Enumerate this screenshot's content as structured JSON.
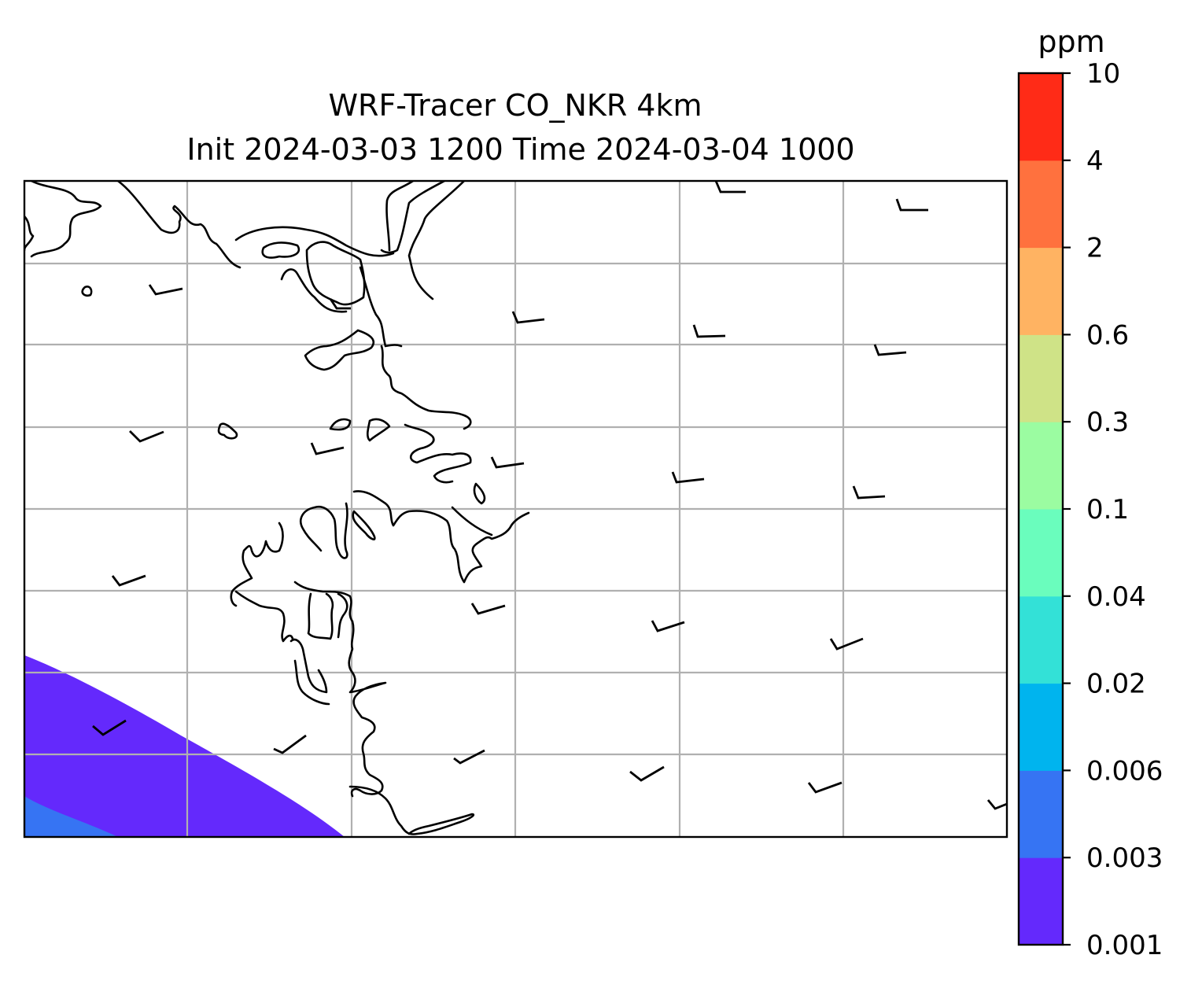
{
  "map": {
    "title_line1": "WRF-Tracer CO_NKR 4km",
    "title_line2": "Init 2024-03-03 1200 Time 2024-03-04 1000",
    "gridlines": true,
    "features": [
      "coastlines",
      "wind-barbs",
      "filled-contours"
    ]
  },
  "colorbar": {
    "unit": "ppm",
    "levels": [
      "0.001",
      "0.003",
      "0.006",
      "0.02",
      "0.04",
      "0.1",
      "0.3",
      "0.6",
      "2",
      "4",
      "10"
    ],
    "colors": [
      "#6429fc",
      "#3674f3",
      "#00b4ee",
      "#33e1d7",
      "#6afdbd",
      "#9bfca1",
      "#cfe387",
      "#ffb362",
      "#ff713e",
      "#ff2b17"
    ]
  },
  "colors": {
    "level_0.001": "#6429fc",
    "level_0.003": "#3674f3",
    "coastline": "#000000",
    "grid": "#b0b0b0"
  }
}
